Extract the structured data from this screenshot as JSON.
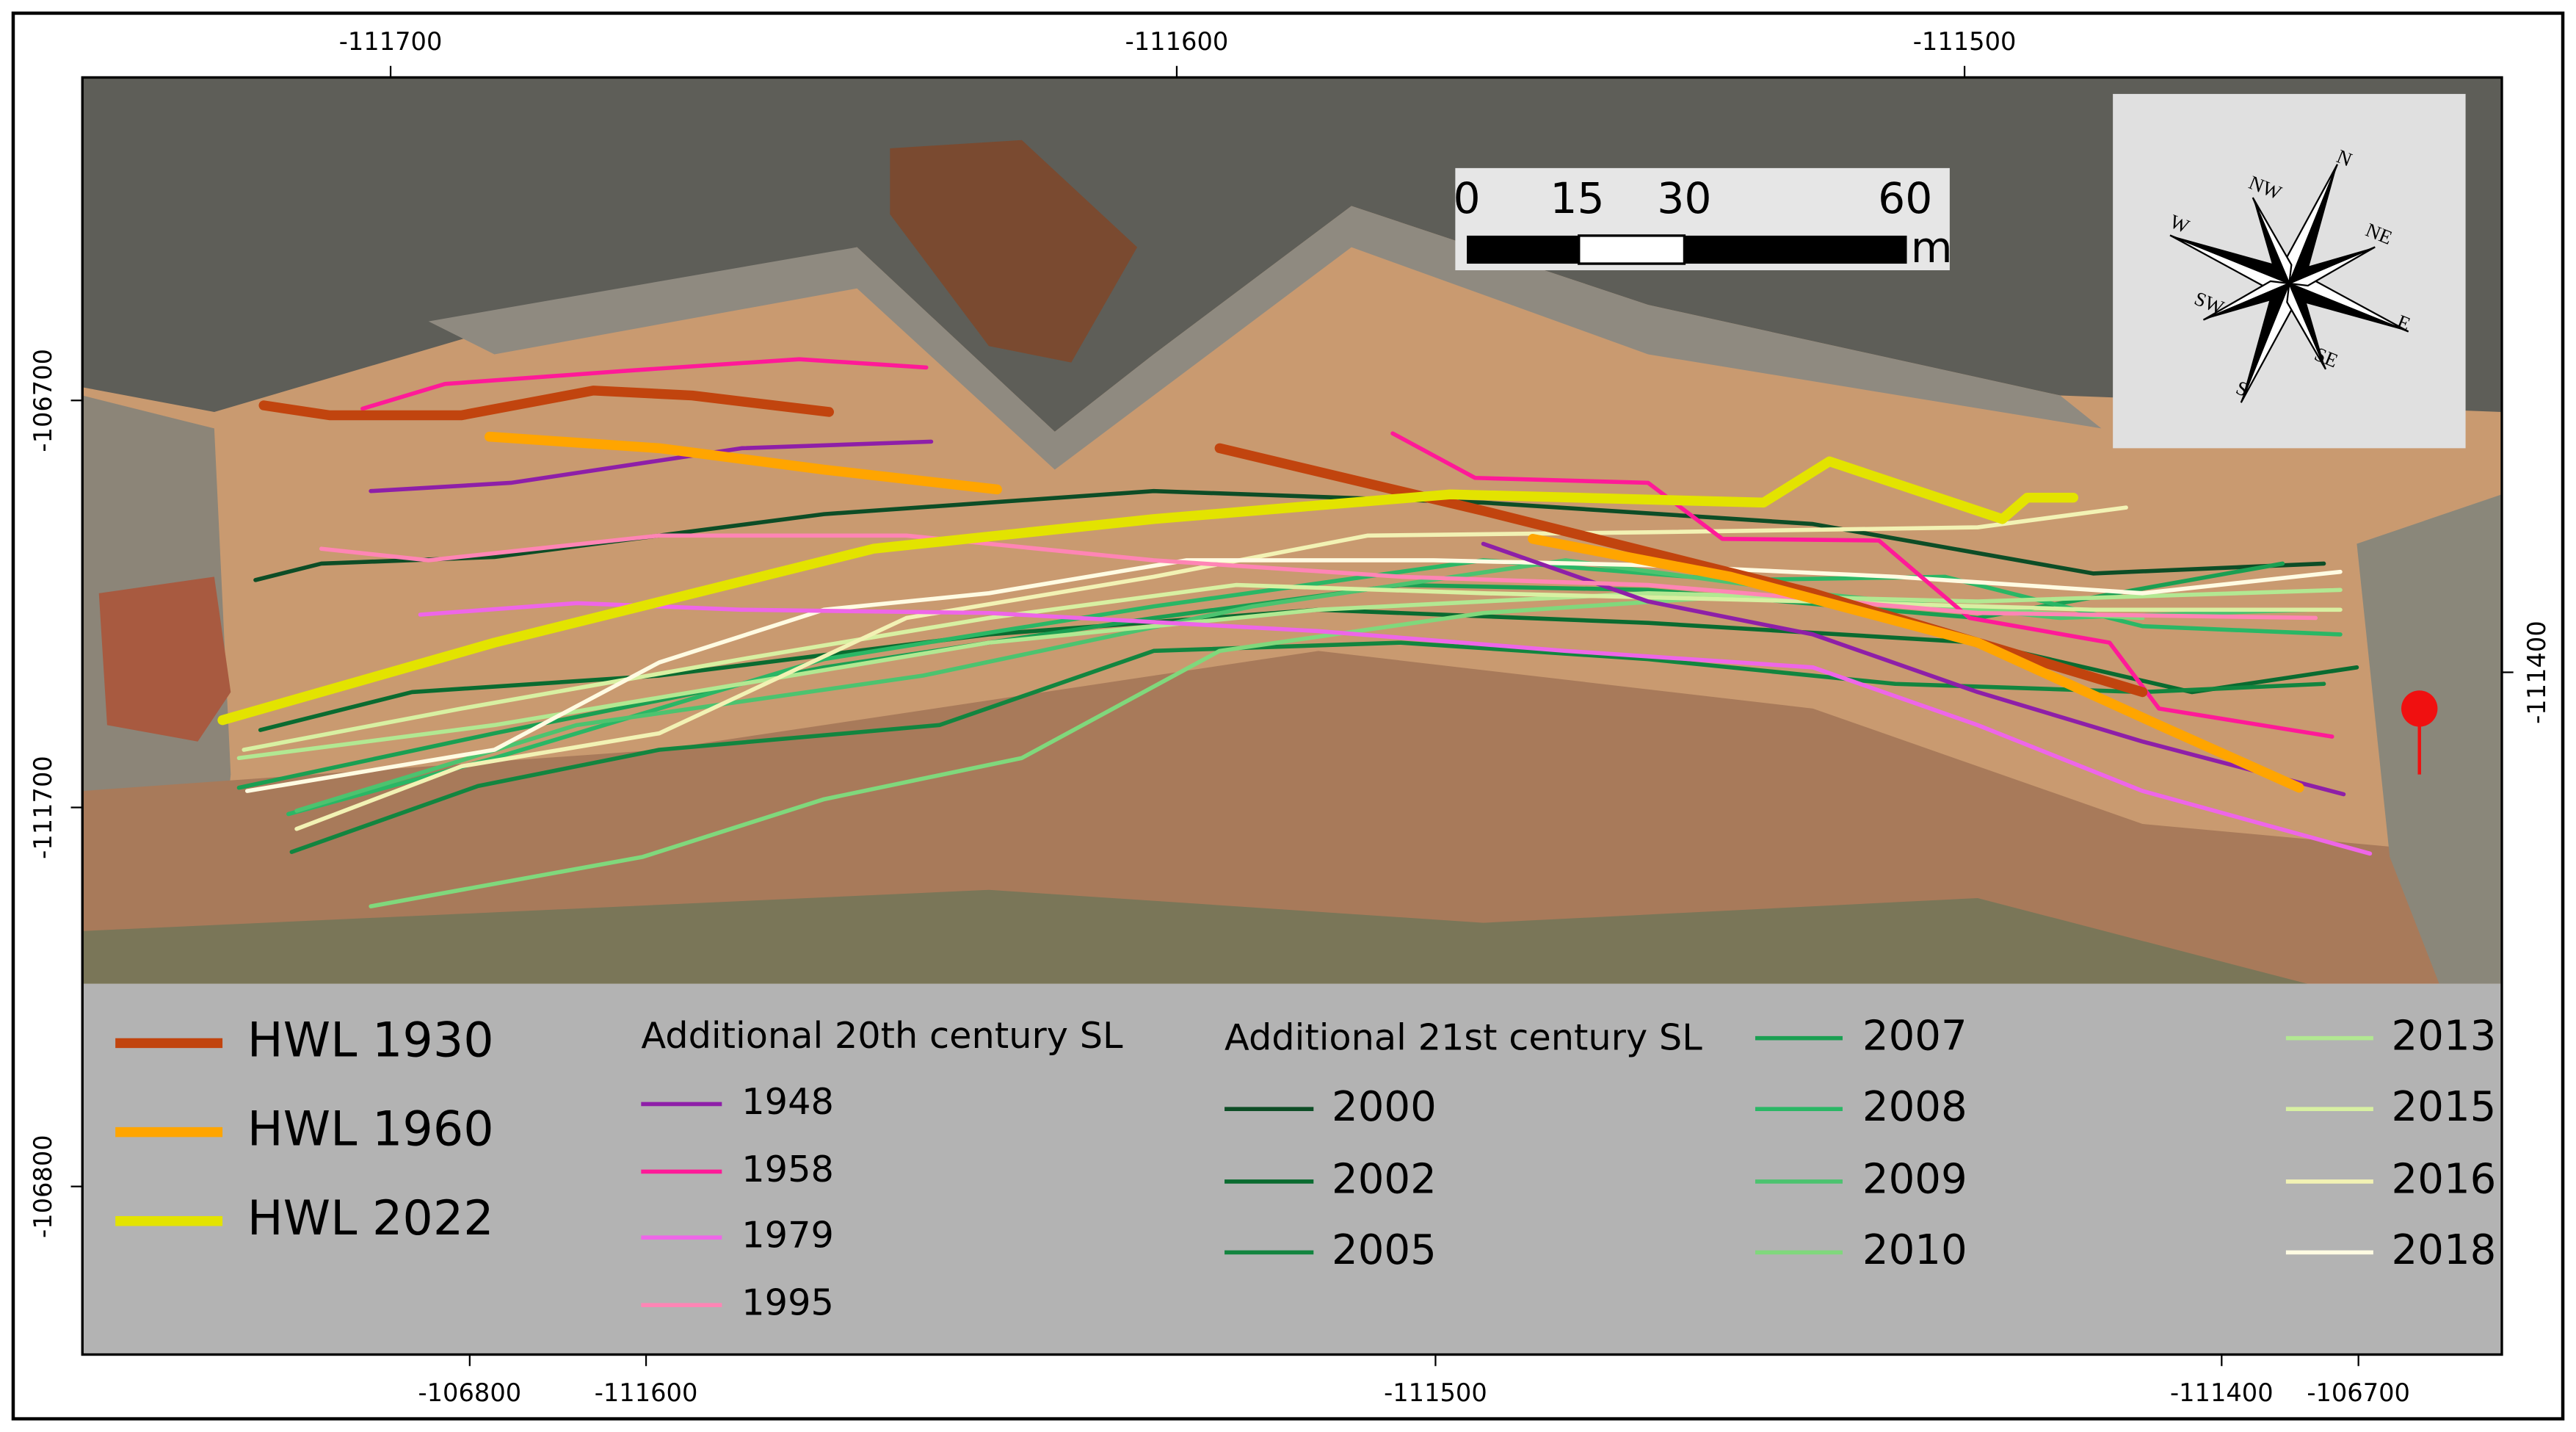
{
  "axes": {
    "top": [
      "-111700",
      "-111600",
      "-111500"
    ],
    "bottom": [
      "-106800",
      "-111600",
      "-111500",
      "-111400",
      "-106700"
    ],
    "left": [
      "-106700",
      "-111700",
      "-106800"
    ],
    "right": [
      "-111400"
    ]
  },
  "scale_bar": {
    "labels": [
      "0",
      "15",
      "30",
      "60"
    ],
    "unit": "m"
  },
  "compass": [
    "N",
    "NE",
    "E",
    "SE",
    "S",
    "SW",
    "W",
    "NW"
  ],
  "legend": {
    "hwl": [
      {
        "label": "HWL 1930",
        "color": "#c1440e"
      },
      {
        "label": "HWL 1960",
        "color": "#ffa500"
      },
      {
        "label": "HWL 2022",
        "color": "#e3e300"
      }
    ],
    "group_20th": {
      "title": "Additional 20th century SL",
      "items": [
        {
          "label": "1948",
          "color": "#8e1fa8"
        },
        {
          "label": "1958",
          "color": "#ff1a98"
        },
        {
          "label": "1979",
          "color": "#ee66e8"
        },
        {
          "label": "1995",
          "color": "#ff85b5"
        }
      ]
    },
    "group_21st": {
      "title": "Additional 21st century SL",
      "items": [
        {
          "label": "2000",
          "color": "#0d4d26"
        },
        {
          "label": "2002",
          "color": "#0a6b30"
        },
        {
          "label": "2005",
          "color": "#12853f"
        },
        {
          "label": "2007",
          "color": "#1a9f52"
        },
        {
          "label": "2008",
          "color": "#2ab765"
        },
        {
          "label": "2009",
          "color": "#4cc36f"
        },
        {
          "label": "2010",
          "color": "#80d87c"
        },
        {
          "label": "2013",
          "color": "#b2e892"
        },
        {
          "label": "2015",
          "color": "#d8f0a2"
        },
        {
          "label": "2016",
          "color": "#f2f2b4"
        },
        {
          "label": "2018",
          "color": "#fffbe2"
        }
      ]
    }
  }
}
